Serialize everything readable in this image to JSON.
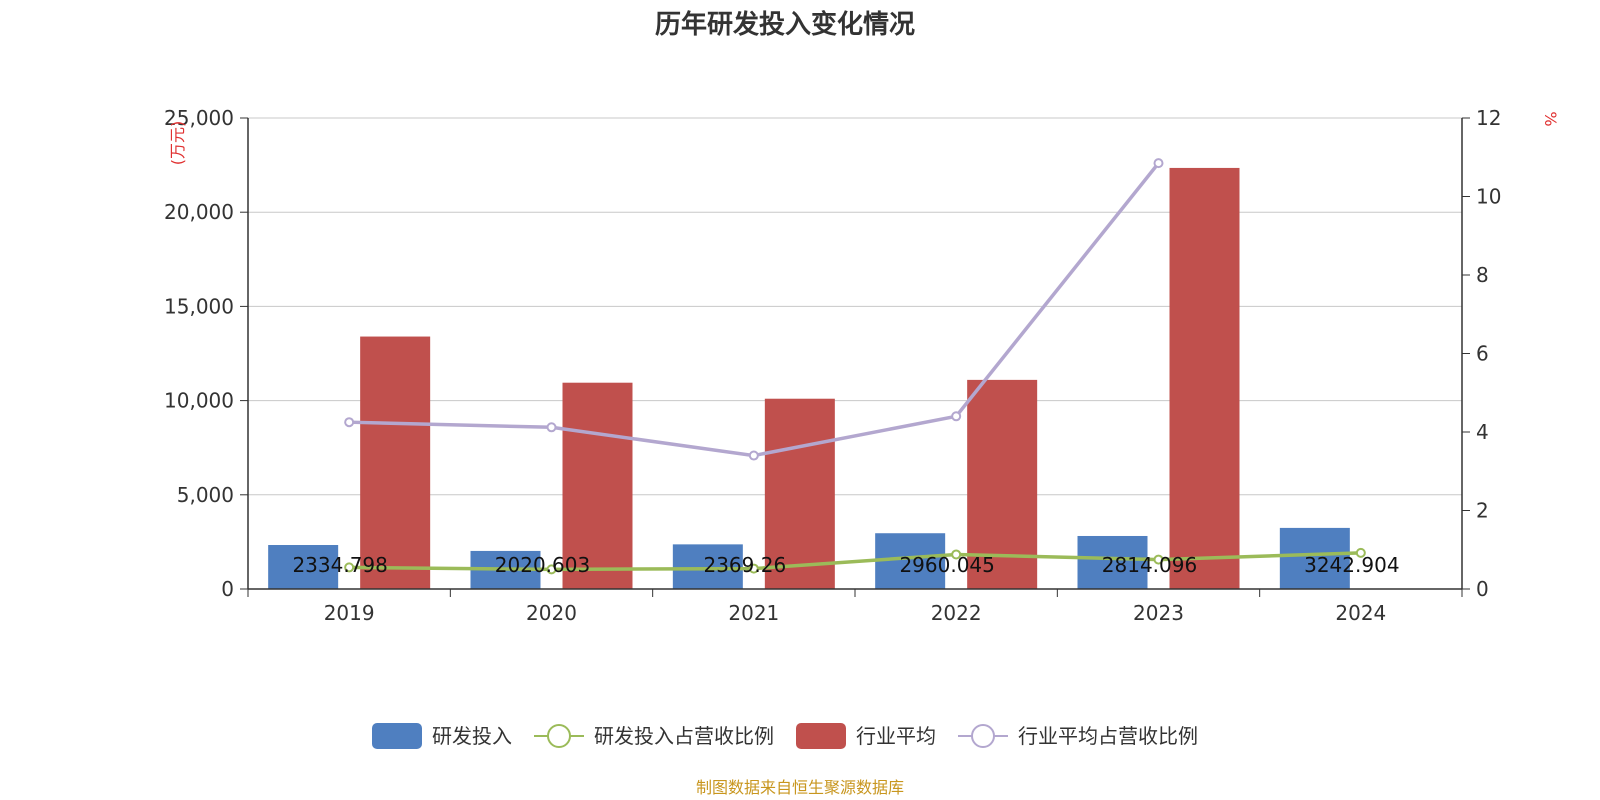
{
  "chart_data": {
    "type": "bar",
    "title": "历年研发投入变化情况",
    "categories": [
      "2019",
      "2020",
      "2021",
      "2022",
      "2023",
      "2024"
    ],
    "y_left": {
      "unit": "(万元)",
      "ylim": [
        0,
        25000
      ],
      "ticks": [
        0,
        5000,
        10000,
        15000,
        20000,
        25000
      ],
      "tick_labels": [
        "0",
        "5,000",
        "10,000",
        "15,000",
        "20,000",
        "25,000"
      ]
    },
    "y_right": {
      "unit": "%",
      "ylim": [
        0,
        12
      ],
      "ticks": [
        0,
        2,
        4,
        6,
        8,
        10,
        12
      ],
      "tick_labels": [
        "0",
        "2",
        "4",
        "6",
        "8",
        "10",
        "12"
      ]
    },
    "series": [
      {
        "name": "研发投入",
        "kind": "bar",
        "axis": "left",
        "color": "#4f7fc0",
        "values": [
          2334.798,
          2020.603,
          2369.26,
          2960.045,
          2814.096,
          3242.904
        ],
        "labels": [
          "2334.798",
          "2020.603",
          "2369.26",
          "2960.045",
          "2814.096",
          "3242.904"
        ]
      },
      {
        "name": "研发投入占营收比例",
        "kind": "line",
        "axis": "right",
        "color": "#9bbb59",
        "values": [
          0.55,
          0.5,
          0.52,
          0.88,
          0.75,
          0.92
        ]
      },
      {
        "name": "行业平均",
        "kind": "bar",
        "axis": "left",
        "color": "#c0504d",
        "values": [
          13400,
          10950,
          10100,
          11100,
          22350,
          null
        ]
      },
      {
        "name": "行业平均占营收比例",
        "kind": "line",
        "axis": "right",
        "color": "#b3a7cf",
        "values": [
          4.25,
          4.12,
          3.4,
          4.4,
          10.85,
          null
        ]
      }
    ],
    "grid": true,
    "legend_position": "bottom"
  },
  "footer": {
    "source": "制图数据来自恒生聚源数据库"
  }
}
